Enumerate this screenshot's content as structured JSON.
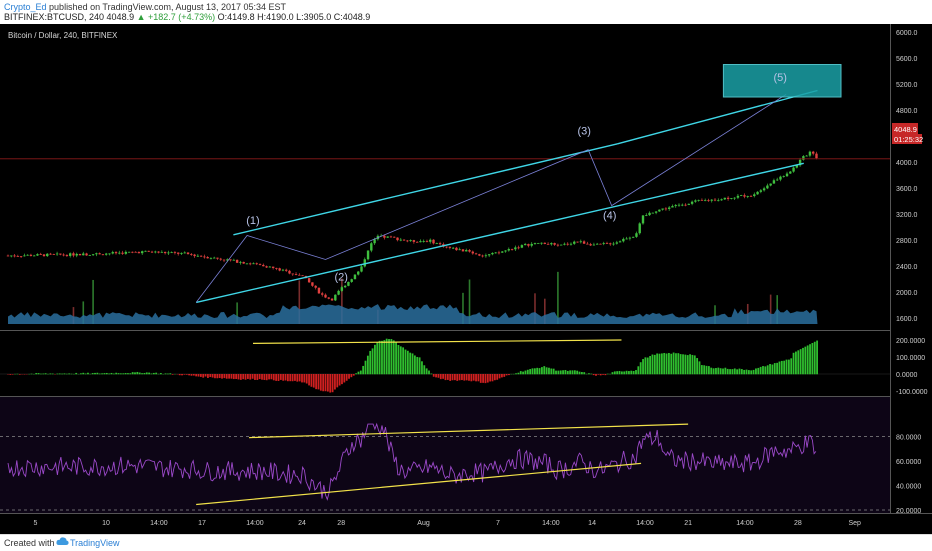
{
  "header": {
    "author": "Crypto_Ed",
    "published_text": "published on TradingView.com, August 13, 2017 05:34 EST",
    "symbol_line": "BITFINEX:BTCUSD, 240",
    "last": "4048.9",
    "change": "+182.7 (+4.73%)",
    "ohlc": "O:4149.8 H:4190.0 L:3905.0 C:4048.9"
  },
  "pane_title": "Bitcoin / Dollar, 240, BITFINEX",
  "price_badge": "4048.9",
  "time_badge": "01:25:32",
  "footer": {
    "created_with": "Created with",
    "brand": "TradingView"
  },
  "colors": {
    "background": "#000000",
    "candle_up": "#3fbf3f",
    "candle_down": "#e0403f",
    "channel": "#3fd6e6",
    "trend": "#f2e24a",
    "rsi": "#9b49c9",
    "volume": "#2a6f9e",
    "target_box": "#1aa0a6"
  },
  "chart_data": [
    {
      "type": "line",
      "name": "price",
      "ylim": [
        1600,
        6000
      ],
      "yticks": [
        "6000.0",
        "5600.0",
        "5200.0",
        "4800.0",
        "4400.0",
        "4000.0",
        "3600.0",
        "3200.0",
        "2800.0",
        "2400.0",
        "2000.0",
        "1600.0"
      ],
      "x_ticks": [
        "5",
        "10",
        "14:00",
        "17",
        "14:00",
        "24",
        "28",
        "Aug",
        "7",
        "14:00",
        "14",
        "14:00",
        "21",
        "14:00",
        "28",
        "Sep"
      ],
      "wave_labels": [
        "(1)",
        "(2)",
        "(3)",
        "(4)",
        "(5)"
      ],
      "close_path": [
        [
          0,
          2560
        ],
        [
          4,
          2580
        ],
        [
          7,
          2620
        ],
        [
          9,
          2590
        ],
        [
          11,
          2500
        ],
        [
          13,
          2410
        ],
        [
          15,
          2250
        ],
        [
          16,
          1960
        ],
        [
          16.5,
          1880
        ],
        [
          17,
          2050
        ],
        [
          18,
          2350
        ],
        [
          18.4,
          2680
        ],
        [
          18.8,
          2850
        ],
        [
          19.5,
          2840
        ],
        [
          20.5,
          2780
        ],
        [
          21.5,
          2790
        ],
        [
          22.5,
          2680
        ],
        [
          23.5,
          2620
        ],
        [
          24.3,
          2560
        ],
        [
          25,
          2600
        ],
        [
          25.8,
          2680
        ],
        [
          26.5,
          2730
        ],
        [
          27.5,
          2760
        ],
        [
          28,
          2700
        ],
        [
          29,
          2780
        ],
        [
          30,
          2720
        ],
        [
          31,
          2760
        ],
        [
          31.6,
          2840
        ],
        [
          32,
          2870
        ],
        [
          32.4,
          3160
        ],
        [
          33,
          3250
        ],
        [
          34,
          3320
        ],
        [
          35,
          3390
        ],
        [
          36,
          3420
        ],
        [
          37,
          3460
        ],
        [
          38,
          3500
        ],
        [
          38.5,
          3600
        ],
        [
          39,
          3690
        ],
        [
          40,
          3880
        ],
        [
          40.5,
          4050
        ],
        [
          41,
          4180
        ],
        [
          41.3,
          4049
        ]
      ],
      "volume": [
        0,
        0.0
      ],
      "projection": {
        "wave4": [
          42.5,
          3300
        ],
        "wave5": [
          46.5,
          5050
        ]
      },
      "target_zone": [
        5000,
        5500
      ]
    },
    {
      "type": "bar",
      "name": "oscillator",
      "ylim": [
        -150,
        250
      ],
      "yticks": [
        "200.0000",
        "100.0000",
        "0.0000",
        "-100.0000"
      ]
    },
    {
      "type": "line",
      "name": "rsi",
      "ylim": [
        15,
        95
      ],
      "yticks": [
        "80.0000",
        "60.0000",
        "40.0000",
        "20.0000"
      ],
      "levels": [
        80,
        20
      ]
    }
  ]
}
